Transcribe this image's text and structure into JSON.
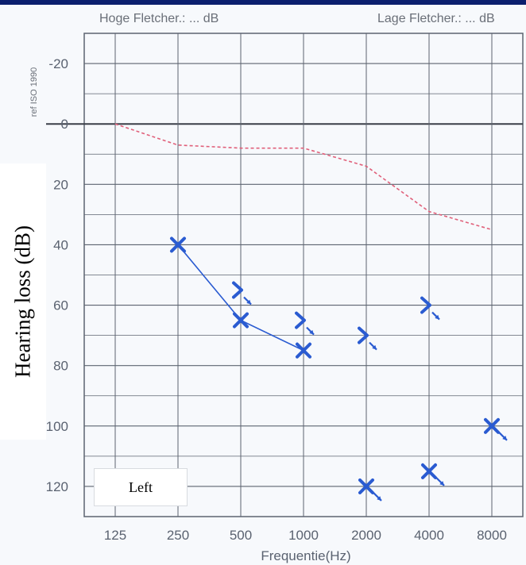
{
  "header": {
    "hoge_fletcher": "Hoge Fletcher.: ... dB",
    "lage_fletcher": "Lage Fletcher.: ... dB"
  },
  "iso_label": "ref ISO 1990",
  "ear_label": "Left",
  "colors": {
    "background_frame": "#0b1f6e",
    "threshold_line": "#e0607a",
    "markers": "#2a5bd1",
    "grid": "#5d6470"
  },
  "chart_data": {
    "type": "scatter",
    "xlabel": "Frequentie(Hz)",
    "ylabel": "Hearing loss (dB)",
    "x_categories": [
      "125",
      "250",
      "500",
      "1000",
      "2000",
      "4000",
      "8000"
    ],
    "y_ticks": [
      -20,
      0,
      20,
      40,
      60,
      80,
      100,
      120
    ],
    "ylim": [
      -30,
      130
    ],
    "y_inverted": true,
    "grid": true,
    "series": [
      {
        "marker": "dashed-line",
        "points": [
          {
            "x": "125",
            "y": 0
          },
          {
            "x": "250",
            "y": 7
          },
          {
            "x": "500",
            "y": 8
          },
          {
            "x": "1000",
            "y": 8
          },
          {
            "x": "2000",
            "y": 14
          },
          {
            "x": "4000",
            "y": 29
          },
          {
            "x": "8000",
            "y": 35
          }
        ]
      },
      {
        "marker": "x-connected",
        "points": [
          {
            "x": "250",
            "y": 40
          },
          {
            "x": "500",
            "y": 65
          },
          {
            "x": "1000",
            "y": 75
          }
        ]
      },
      {
        "marker": "bone-conduction-arrow",
        "points": [
          {
            "x": "500",
            "y": 55
          },
          {
            "x": "1000",
            "y": 65
          },
          {
            "x": "2000",
            "y": 70
          },
          {
            "x": "4000",
            "y": 60
          }
        ]
      },
      {
        "marker": "x-no-response",
        "points": [
          {
            "x": "2000",
            "y": 120
          },
          {
            "x": "4000",
            "y": 115
          },
          {
            "x": "8000",
            "y": 100
          }
        ]
      }
    ]
  }
}
